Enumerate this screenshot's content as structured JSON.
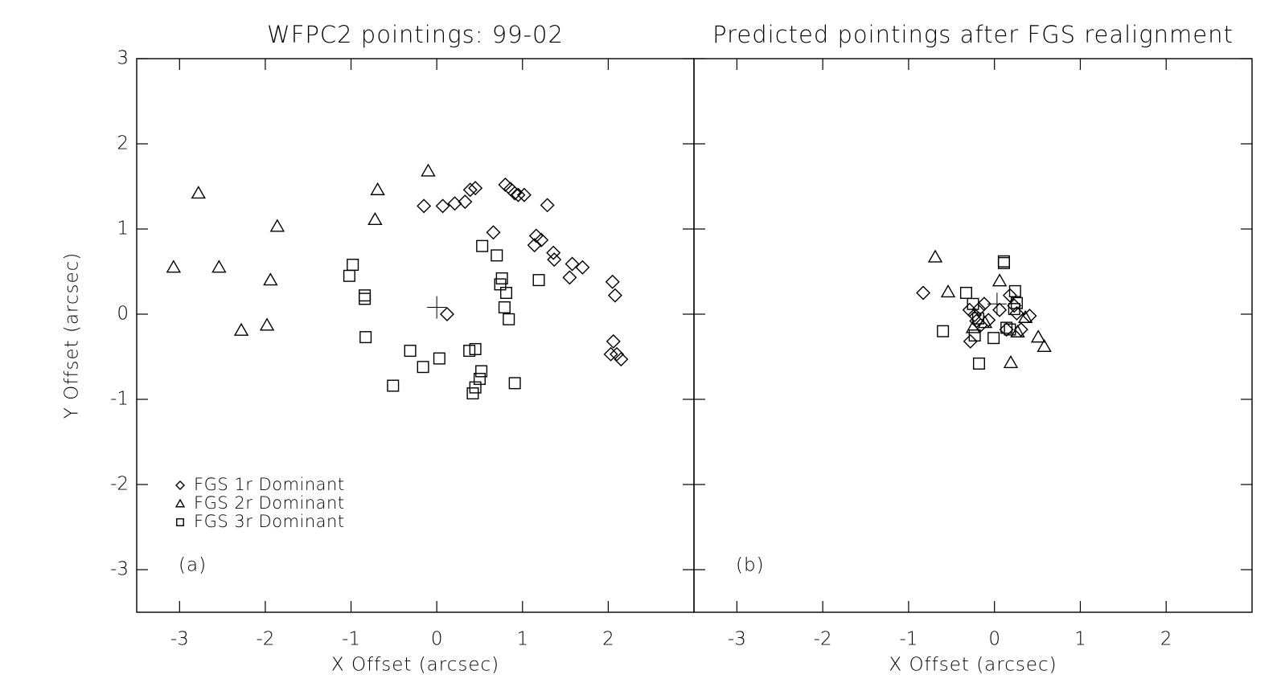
{
  "chart_data": [
    {
      "type": "scatter",
      "title": "WFPC2 pointings: 99-02",
      "xlabel": "X Offset (arcsec)",
      "ylabel": "Y Offset (arcsec)",
      "panel_label": "(a)",
      "xlim": [
        -3.5,
        3.0
      ],
      "ylim": [
        -3.5,
        3.0
      ],
      "xticks": [
        -3,
        -2,
        -1,
        0,
        1,
        2
      ],
      "yticks": [
        -3,
        -2,
        -1,
        0,
        1,
        2,
        3
      ],
      "legend": "lower left",
      "reference_point": {
        "x": 0,
        "y": 0.08
      },
      "series": [
        {
          "name": "FGS 1r Dominant",
          "marker": "diamond",
          "color": "#000000",
          "x": [
            -0.15,
            0.07,
            0.21,
            0.33,
            0.39,
            0.45,
            0.8,
            0.86,
            0.91,
            0.95,
            1.02,
            1.29,
            0.66,
            1.16,
            1.22,
            1.14,
            1.36,
            1.37,
            1.58,
            1.55,
            1.7,
            2.05,
            2.08,
            0.12,
            2.06,
            2.03,
            2.1,
            2.15
          ],
          "values": [
            1.27,
            1.27,
            1.3,
            1.32,
            1.46,
            1.48,
            1.52,
            1.47,
            1.42,
            1.4,
            1.4,
            1.28,
            0.96,
            0.92,
            0.87,
            0.81,
            0.72,
            0.64,
            0.59,
            0.43,
            0.55,
            0.38,
            0.22,
            0.0,
            -0.32,
            -0.47,
            -0.47,
            -0.53
          ]
        },
        {
          "name": "FGS 2r Dominant",
          "marker": "triangle",
          "color": "#000000",
          "x": [
            -3.07,
            -2.78,
            -2.54,
            -2.28,
            -1.98,
            -1.94,
            -1.86,
            -0.72,
            -0.69,
            -0.1
          ],
          "values": [
            0.55,
            1.42,
            0.55,
            -0.19,
            -0.13,
            0.4,
            1.03,
            1.11,
            1.46,
            1.68
          ]
        },
        {
          "name": "FGS 3r Dominant",
          "marker": "square",
          "color": "#000000",
          "x": [
            -0.98,
            -1.02,
            -0.84,
            -0.84,
            -0.83,
            -0.51,
            -0.31,
            -0.16,
            0.03,
            0.38,
            0.45,
            0.42,
            0.45,
            0.5,
            0.52,
            0.53,
            0.7,
            0.76,
            0.74,
            0.81,
            0.79,
            0.84,
            0.91,
            1.19
          ],
          "values": [
            0.58,
            0.45,
            0.22,
            0.18,
            -0.27,
            -0.84,
            -0.43,
            -0.62,
            -0.52,
            -0.43,
            -0.41,
            -0.93,
            -0.86,
            -0.76,
            -0.67,
            0.8,
            0.69,
            0.42,
            0.35,
            0.25,
            0.08,
            -0.06,
            -0.81,
            0.4
          ]
        }
      ]
    },
    {
      "type": "scatter",
      "title": "Predicted pointings after FGS realignment",
      "xlabel": "X Offset (arcsec)",
      "panel_label": "(b)",
      "xlim": [
        -3.5,
        3.0
      ],
      "ylim": [
        -3.5,
        3.0
      ],
      "xticks": [
        -3,
        -2,
        -1,
        0,
        1,
        2
      ],
      "yticks": [
        -3,
        -2,
        -1,
        0,
        1,
        2,
        3
      ],
      "reference_point": {
        "x": 0.03,
        "y": 0.12
      },
      "series": [
        {
          "marker": "diamond",
          "color": "#000000",
          "x": [
            -0.83,
            -0.29,
            -0.23,
            -0.18,
            -0.12,
            -0.07,
            -0.16,
            -0.28,
            0.06,
            0.18,
            0.23,
            0.26,
            0.31,
            0.41,
            -0.21,
            0.14
          ],
          "values": [
            0.25,
            0.05,
            -0.01,
            0.06,
            0.12,
            -0.07,
            -0.13,
            -0.32,
            0.05,
            0.22,
            0.1,
            0.01,
            -0.18,
            -0.02,
            -0.08,
            -0.18
          ]
        },
        {
          "marker": "triangle",
          "color": "#000000",
          "x": [
            -0.69,
            -0.54,
            0.06,
            0.58,
            0.51,
            0.19,
            0.27,
            -0.25,
            -0.11,
            0.36
          ],
          "values": [
            0.67,
            0.26,
            0.39,
            -0.38,
            -0.27,
            -0.57,
            -0.21,
            -0.16,
            -0.1,
            -0.04
          ]
        },
        {
          "marker": "square",
          "color": "#000000",
          "x": [
            -0.6,
            -0.33,
            -0.18,
            0.11,
            0.11,
            -0.01,
            -0.23,
            -0.19,
            0.24,
            0.26,
            0.18,
            0.23,
            0.14,
            -0.25
          ],
          "values": [
            -0.2,
            0.25,
            -0.58,
            0.62,
            0.6,
            -0.28,
            -0.25,
            -0.05,
            0.27,
            0.13,
            -0.18,
            0.06,
            -0.16,
            0.12
          ]
        }
      ]
    }
  ]
}
